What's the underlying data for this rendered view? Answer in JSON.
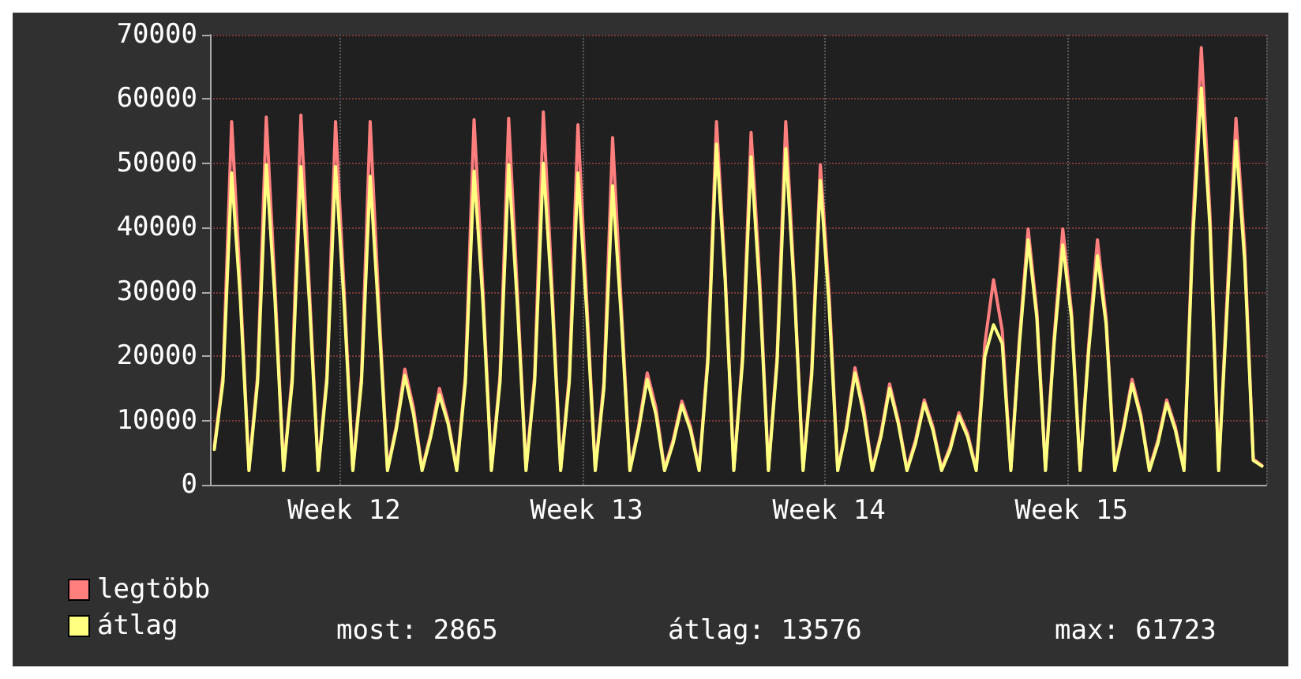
{
  "chart_data": {
    "type": "line",
    "categories": [
      null,
      null,
      null,
      null,
      null,
      null,
      null,
      null,
      null,
      null,
      null,
      null,
      null,
      null,
      null,
      "Week 12",
      null,
      null,
      null,
      null,
      null,
      null,
      null,
      null,
      null,
      null,
      null,
      null,
      null,
      null,
      null,
      null,
      null,
      null,
      null,
      null,
      null,
      null,
      null,
      null,
      null,
      null,
      null,
      "Week 13",
      null,
      null,
      null,
      null,
      null,
      null,
      null,
      null,
      null,
      null,
      null,
      null,
      null,
      null,
      null,
      null,
      null,
      null,
      null,
      null,
      null,
      null,
      null,
      null,
      null,
      null,
      null,
      "Week 14",
      null,
      null,
      null,
      null,
      null,
      null,
      null,
      null,
      null,
      null,
      null,
      null,
      null,
      null,
      null,
      null,
      null,
      null,
      null,
      null,
      null,
      null,
      null,
      null,
      null,
      null,
      null,
      "Week 15",
      null,
      null,
      null,
      null,
      null,
      null,
      null,
      null,
      null,
      null,
      null,
      null,
      null,
      null,
      null,
      null,
      null,
      null,
      null,
      null,
      null,
      null
    ],
    "series": [
      {
        "name": "legtöbb",
        "color": "#ff7f7f",
        "values": [
          6000,
          17000,
          56500,
          31000,
          2500,
          17000,
          57200,
          31000,
          2500,
          17000,
          57500,
          30000,
          2500,
          17000,
          56500,
          30000,
          2500,
          17000,
          56500,
          28000,
          2500,
          9000,
          18000,
          12000,
          2500,
          8000,
          15000,
          10000,
          2500,
          17000,
          56800,
          31000,
          2500,
          17000,
          57000,
          30000,
          2500,
          17000,
          58000,
          31000,
          2500,
          17000,
          56000,
          29000,
          2500,
          16000,
          54000,
          28000,
          2500,
          9000,
          17400,
          12000,
          2500,
          7000,
          13000,
          9000,
          2500,
          20000,
          56500,
          33000,
          2500,
          20000,
          54800,
          32000,
          2500,
          20000,
          56500,
          31000,
          2500,
          18000,
          49800,
          30000,
          2500,
          9000,
          18200,
          12000,
          2500,
          8000,
          15700,
          10000,
          2500,
          7000,
          13200,
          9000,
          2500,
          6000,
          11200,
          8000,
          2500,
          22000,
          31900,
          24000,
          2500,
          23000,
          39800,
          27000,
          2500,
          23000,
          39800,
          27000,
          2500,
          22000,
          38100,
          26000,
          2500,
          9000,
          16400,
          11000,
          2500,
          7000,
          13200,
          9000,
          2500,
          40000,
          68000,
          42000,
          2500,
          30000,
          57000,
          37000,
          4000,
          3000
        ]
      },
      {
        "name": "átlag",
        "color": "#ffff80",
        "values": [
          5500,
          16000,
          48500,
          29000,
          2200,
          16000,
          49800,
          29000,
          2200,
          16000,
          49500,
          28000,
          2200,
          16000,
          49500,
          28000,
          2200,
          16000,
          48000,
          26000,
          2200,
          8500,
          17000,
          11000,
          2200,
          7500,
          14000,
          9500,
          2200,
          16000,
          48800,
          29000,
          2200,
          16000,
          49800,
          28000,
          2200,
          16000,
          50000,
          29000,
          2200,
          16000,
          48500,
          27000,
          2200,
          15000,
          46500,
          26000,
          2200,
          8500,
          16400,
          11000,
          2200,
          6500,
          12400,
          8500,
          2200,
          19000,
          53000,
          32000,
          2200,
          19000,
          51000,
          30000,
          2200,
          19000,
          52300,
          30000,
          2200,
          17000,
          47300,
          28000,
          2200,
          8500,
          17400,
          11000,
          2200,
          7500,
          15000,
          9500,
          2200,
          6500,
          12700,
          8500,
          2200,
          5500,
          10700,
          7500,
          2200,
          20000,
          24900,
          22000,
          2200,
          22000,
          38100,
          26000,
          2200,
          22000,
          37300,
          26000,
          2200,
          21000,
          35600,
          25000,
          2200,
          8500,
          15700,
          10500,
          2200,
          6500,
          12700,
          8500,
          2200,
          38000,
          61700,
          40000,
          2200,
          28000,
          53500,
          35000,
          3800,
          2900
        ]
      }
    ],
    "ylim": [
      0,
      70000
    ],
    "yticks": [
      0,
      10000,
      20000,
      30000,
      40000,
      50000,
      60000,
      70000
    ],
    "grid": true,
    "legend": "bottom left",
    "marker": "none",
    "line_style": "solid",
    "annotations": [
      "most: 2865",
      "átlag: 13576",
      "max: 61723"
    ]
  }
}
